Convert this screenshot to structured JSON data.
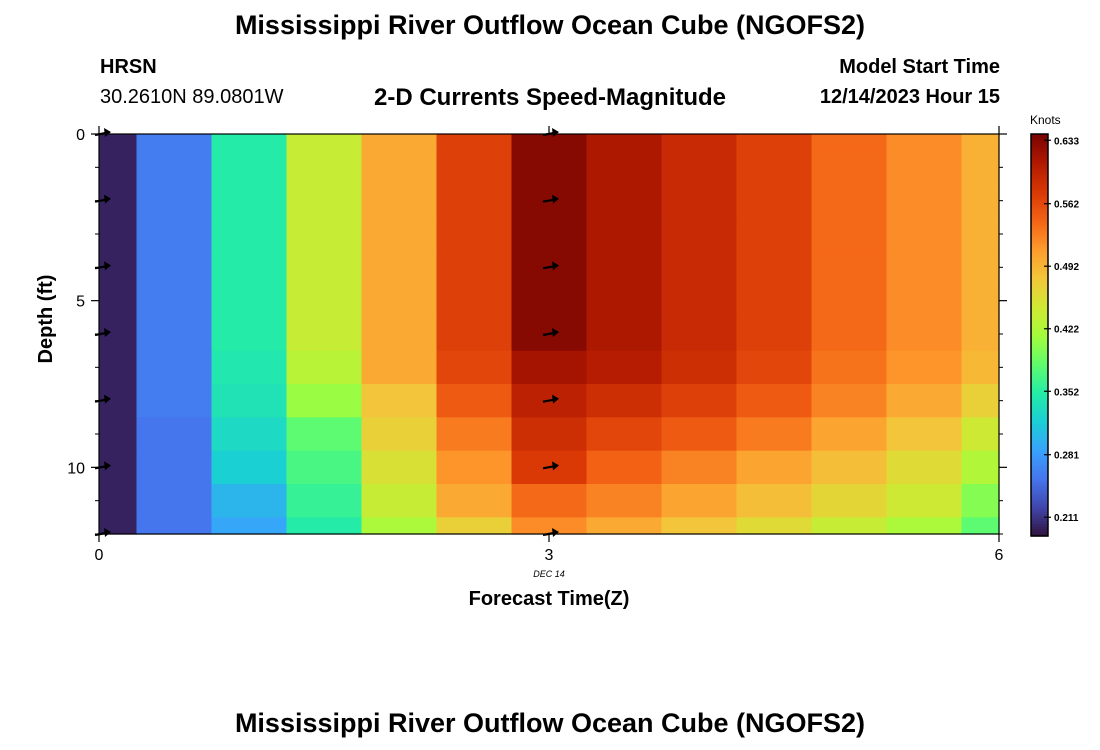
{
  "header": {
    "title": "Mississippi River Outflow Ocean Cube (NGOFS2)",
    "station_label": "HRSN",
    "coordinates": "30.2610N  89.0801W",
    "model_start_label": "Model Start Time",
    "model_start_value": "12/14/2023 Hour 15"
  },
  "footer": {
    "title": "Mississippi River Outflow Ocean Cube (NGOFS2)"
  },
  "chart_data": {
    "type": "heatmap",
    "title": "2-D Currents Speed-Magnitude",
    "xlabel": "Forecast Time(Z)",
    "ylabel": "Depth (ft)",
    "x_ticks": [
      "0",
      "3",
      "6"
    ],
    "x_tick_values": [
      0,
      3,
      6
    ],
    "x_sublabel": "DEC 14",
    "y_ticks": [
      "0",
      "5",
      "10"
    ],
    "y_tick_values": [
      0,
      5,
      10
    ],
    "xlim": [
      0,
      6
    ],
    "ylim": [
      0,
      12
    ],
    "y_inverted": true,
    "time_centers": [
      0.0,
      0.5,
      1.0,
      1.5,
      2.0,
      2.5,
      3.0,
      3.5,
      4.0,
      4.5,
      5.0,
      5.5,
      6.0
    ],
    "depth_levels": [
      0,
      1,
      2,
      3,
      4,
      5,
      6,
      7,
      8,
      9,
      10,
      11,
      12
    ],
    "speed_knots": [
      [
        0.2,
        0.26,
        0.35,
        0.44,
        0.5,
        0.57,
        0.633,
        0.61,
        0.59,
        0.57,
        0.54,
        0.52,
        0.495
      ],
      [
        0.2,
        0.26,
        0.35,
        0.44,
        0.5,
        0.57,
        0.633,
        0.61,
        0.59,
        0.57,
        0.54,
        0.52,
        0.495
      ],
      [
        0.2,
        0.26,
        0.35,
        0.44,
        0.5,
        0.57,
        0.633,
        0.61,
        0.59,
        0.57,
        0.54,
        0.52,
        0.495
      ],
      [
        0.2,
        0.26,
        0.35,
        0.44,
        0.5,
        0.57,
        0.633,
        0.61,
        0.59,
        0.57,
        0.54,
        0.52,
        0.495
      ],
      [
        0.2,
        0.26,
        0.35,
        0.44,
        0.5,
        0.57,
        0.633,
        0.61,
        0.59,
        0.57,
        0.54,
        0.52,
        0.495
      ],
      [
        0.2,
        0.26,
        0.35,
        0.44,
        0.5,
        0.57,
        0.633,
        0.61,
        0.59,
        0.57,
        0.54,
        0.52,
        0.495
      ],
      [
        0.2,
        0.26,
        0.35,
        0.44,
        0.5,
        0.57,
        0.633,
        0.61,
        0.59,
        0.57,
        0.54,
        0.52,
        0.495
      ],
      [
        0.2,
        0.26,
        0.345,
        0.43,
        0.5,
        0.565,
        0.615,
        0.605,
        0.585,
        0.565,
        0.535,
        0.515,
        0.49
      ],
      [
        0.2,
        0.26,
        0.34,
        0.41,
        0.48,
        0.55,
        0.6,
        0.585,
        0.57,
        0.55,
        0.525,
        0.5,
        0.47
      ],
      [
        0.2,
        0.255,
        0.33,
        0.38,
        0.47,
        0.53,
        0.585,
        0.565,
        0.55,
        0.53,
        0.505,
        0.48,
        0.445
      ],
      [
        0.2,
        0.255,
        0.32,
        0.37,
        0.455,
        0.515,
        0.575,
        0.545,
        0.525,
        0.505,
        0.485,
        0.46,
        0.425
      ],
      [
        0.2,
        0.255,
        0.3,
        0.36,
        0.44,
        0.5,
        0.54,
        0.525,
        0.505,
        0.485,
        0.465,
        0.445,
        0.4
      ],
      [
        0.2,
        0.255,
        0.29,
        0.35,
        0.42,
        0.47,
        0.52,
        0.5,
        0.48,
        0.46,
        0.44,
        0.42,
        0.38
      ]
    ],
    "vector_columns": [
      0.0,
      3.0
    ],
    "vector_depths": [
      0,
      2,
      4,
      6,
      8,
      10,
      12
    ],
    "colorbar": {
      "label": "Knots",
      "ticks": [
        "0.633",
        "0.562",
        "0.492",
        "0.422",
        "0.352",
        "0.281",
        "0.211"
      ],
      "tick_values": [
        0.633,
        0.562,
        0.492,
        0.422,
        0.352,
        0.281,
        0.211
      ],
      "min": 0.19,
      "max": 0.64,
      "colors": [
        "#30123b",
        "#4145ab",
        "#4675ed",
        "#39a2fc",
        "#1bcfd4",
        "#24eca6",
        "#61fc6c",
        "#a4fc3b",
        "#d1e834",
        "#f3c63a",
        "#fe9b2d",
        "#f36315",
        "#d93806",
        "#b11901",
        "#7a0402"
      ]
    }
  }
}
